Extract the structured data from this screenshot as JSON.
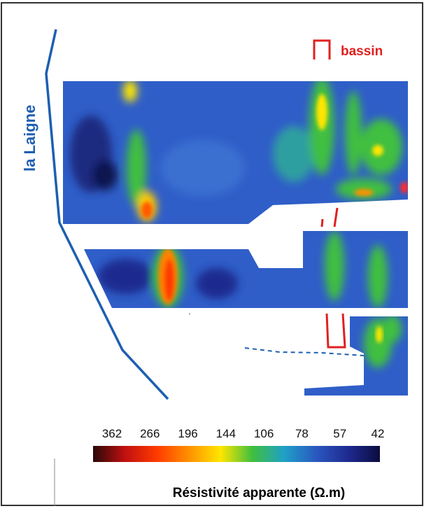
{
  "map": {
    "river_label": "la Laigne",
    "bassin_label": "bassin"
  },
  "colorbar": {
    "tick_labels": [
      "362",
      "266",
      "196",
      "144",
      "106",
      "78",
      "57",
      "42"
    ],
    "title": "Résistivité apparente (Ω.m)",
    "min": 42,
    "max": 362,
    "colors": [
      "#2a0808",
      "#c01010",
      "#ff3a00",
      "#ff9000",
      "#ffe600",
      "#3fbf3f",
      "#1fa0c8",
      "#2a58c0",
      "#1e2a90",
      "#0c0c40"
    ]
  },
  "colors": {
    "river": "#1d5fb0",
    "bassin": "#e02020",
    "background_field": "#2f5ec8",
    "panel_border": "#333333"
  }
}
